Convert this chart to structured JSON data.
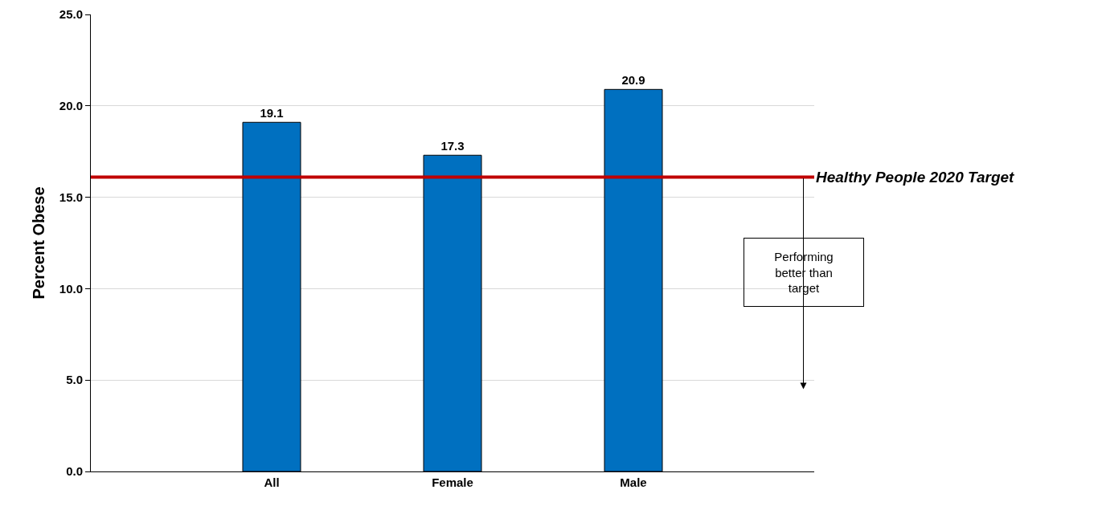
{
  "chart_data": {
    "type": "bar",
    "ylabel": "Percent Obese",
    "categories": [
      "All",
      "Female",
      "Male"
    ],
    "values": [
      19.1,
      17.3,
      20.9
    ],
    "color": "#0070c0",
    "data_labels": true,
    "ylim": [
      0,
      25
    ],
    "yticks": [
      {
        "value": 0,
        "label": "0.0"
      },
      {
        "value": 5,
        "label": "5.0"
      },
      {
        "value": 10,
        "label": "10.0"
      },
      {
        "value": 15,
        "label": "15.0"
      },
      {
        "value": 20,
        "label": "20.0"
      },
      {
        "value": 25,
        "label": "25.0"
      }
    ],
    "grid": "y",
    "ref_lines": [
      {
        "axis": "y",
        "value": 16.1,
        "label": "Healthy People 2020 Target",
        "color": "#c00000"
      }
    ],
    "annotations": [
      "Performing better than target"
    ]
  }
}
